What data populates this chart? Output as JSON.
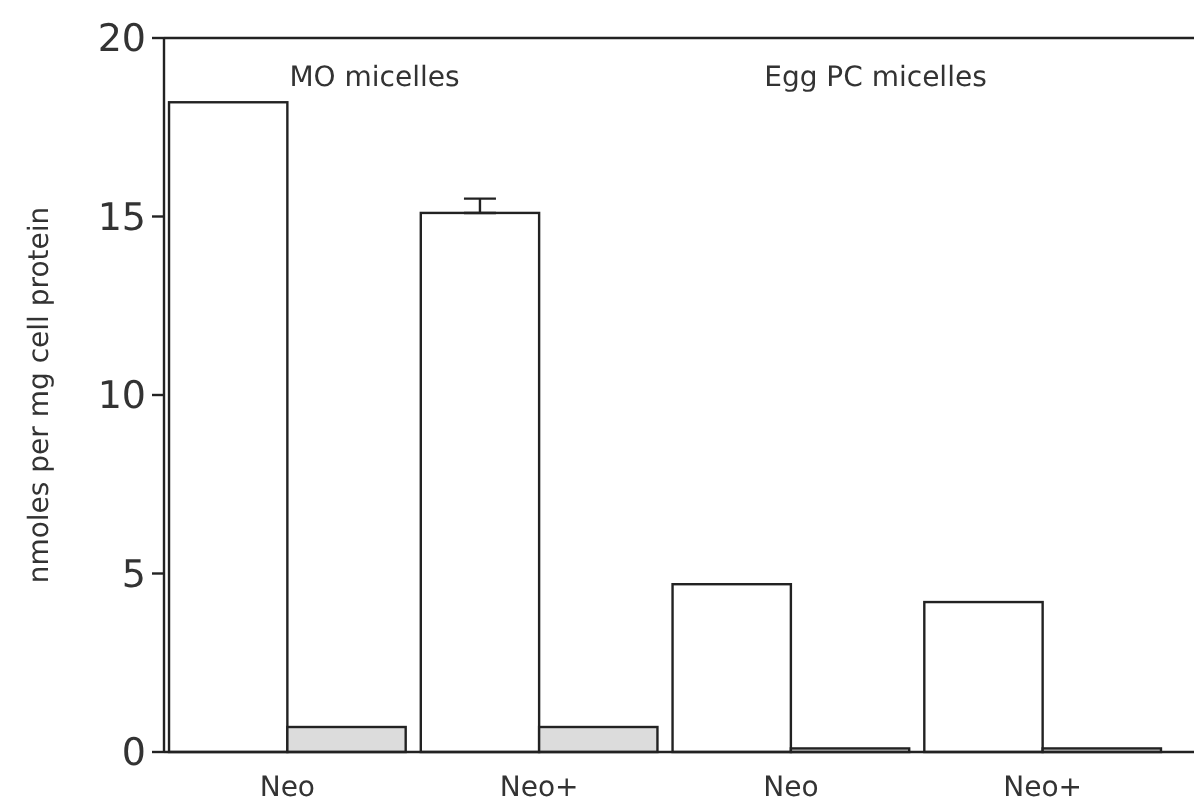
{
  "chart_data": {
    "type": "bar",
    "ylabel": "nmoles per mg cell protein",
    "categories": [
      "Neo",
      "Neo+",
      "Neo",
      "Neo+"
    ],
    "series": [
      {
        "color": "#ffffff",
        "values": [
          18.2,
          15.1,
          4.7,
          4.2
        ],
        "errors": [
          null,
          [
            15.1,
            15.5
          ],
          null,
          null
        ]
      },
      {
        "color": "#dcdcdc",
        "values": [
          0.7,
          0.7,
          0.1,
          0.1
        ]
      }
    ],
    "ylim": [
      0,
      20
    ],
    "yticks": [
      0,
      5,
      10,
      15,
      20
    ],
    "annotations": [
      "MO micelles",
      "Egg PC micelles"
    ]
  }
}
